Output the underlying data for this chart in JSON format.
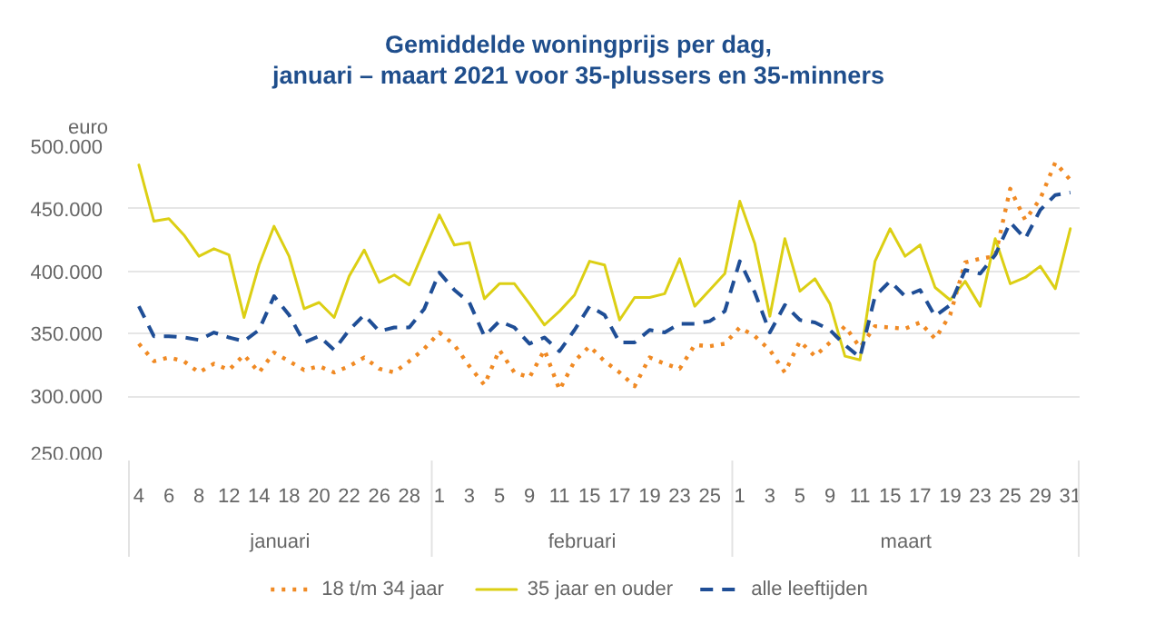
{
  "chart_data": {
    "type": "line",
    "title": "Gemiddelde woningprijs per dag,\njanuari – maart 2021 voor 35-plussers en 35-minners",
    "ylabel": "euro",
    "categories": [
      "4",
      null,
      "6",
      null,
      "8",
      null,
      "12",
      null,
      "14",
      null,
      "18",
      null,
      "20",
      null,
      "22",
      null,
      "26",
      null,
      "28",
      null,
      "1",
      null,
      "3",
      null,
      "5",
      null,
      "9",
      null,
      "11",
      null,
      "15",
      null,
      "17",
      null,
      "19",
      null,
      "23",
      null,
      "25",
      null,
      "1",
      null,
      "3",
      null,
      "5",
      null,
      "9",
      null,
      "11",
      null,
      "15",
      null,
      "17",
      null,
      "19",
      null,
      "23",
      null,
      "25",
      null,
      "29",
      null,
      "31"
    ],
    "annotations": [
      "januari",
      "februari",
      "maart"
    ],
    "series": [
      {
        "name": "18 t/m 34 jaar",
        "color": "#f08a24",
        "line_style": "dotted",
        "values": [
          342000,
          328000,
          331000,
          328000,
          319000,
          326000,
          321000,
          333000,
          319000,
          335000,
          328000,
          321000,
          324000,
          319000,
          324000,
          331000,
          322000,
          319000,
          328000,
          338000,
          351000,
          341000,
          324000,
          309000,
          337000,
          319000,
          315000,
          337000,
          305000,
          328000,
          340000,
          328000,
          319000,
          308000,
          331000,
          326000,
          322000,
          341000,
          340000,
          342000,
          355000,
          348000,
          337000,
          319000,
          344000,
          332000,
          343000,
          356000,
          339000,
          356000,
          355000,
          354000,
          359000,
          346000,
          365000,
          407000,
          410000,
          412000,
          466000,
          441000,
          458000,
          487000,
          473000
        ]
      },
      {
        "name": "35 jaar en ouder",
        "color": "#dccf14",
        "line_style": "solid",
        "values": [
          485000,
          440000,
          442000,
          429000,
          412000,
          418000,
          413000,
          363000,
          405000,
          436000,
          412000,
          370000,
          375000,
          363000,
          396000,
          417000,
          391000,
          397000,
          389000,
          417000,
          445000,
          421000,
          423000,
          378000,
          390000,
          390000,
          374000,
          357000,
          368000,
          381000,
          408000,
          405000,
          361000,
          379000,
          379000,
          382000,
          410000,
          372000,
          385000,
          398000,
          456000,
          422000,
          364000,
          426000,
          384000,
          394000,
          374000,
          332000,
          329000,
          408000,
          434000,
          412000,
          421000,
          387000,
          377000,
          392000,
          372000,
          426000,
          390000,
          395000,
          404000,
          386000,
          434000
        ]
      },
      {
        "name": "alle leeftijden",
        "color": "#1f4e96",
        "line_style": "dashed",
        "values": [
          372000,
          348000,
          348000,
          347000,
          345000,
          351000,
          347000,
          344000,
          353000,
          380000,
          365000,
          343000,
          348000,
          337000,
          353000,
          365000,
          352000,
          355000,
          355000,
          370000,
          399000,
          385000,
          375000,
          348000,
          360000,
          355000,
          342000,
          347000,
          336000,
          353000,
          372000,
          365000,
          343000,
          343000,
          353000,
          351000,
          358000,
          358000,
          360000,
          368000,
          408000,
          383000,
          351000,
          373000,
          361000,
          359000,
          353000,
          341000,
          331000,
          380000,
          392000,
          380000,
          385000,
          364000,
          373000,
          401000,
          398000,
          413000,
          439000,
          426000,
          449000,
          461000,
          463000
        ]
      }
    ],
    "ylim": [
      250000,
      500000
    ],
    "yticks": [
      {
        "value": 250000,
        "label": "250.000"
      },
      {
        "value": 300000,
        "label": "300.000"
      },
      {
        "value": 350000,
        "label": "350.000"
      },
      {
        "value": 400000,
        "label": "400.000"
      },
      {
        "value": 450000,
        "label": "450.000"
      },
      {
        "value": 500000,
        "label": "500.000"
      }
    ],
    "grid": "y",
    "legend": "bottom"
  }
}
